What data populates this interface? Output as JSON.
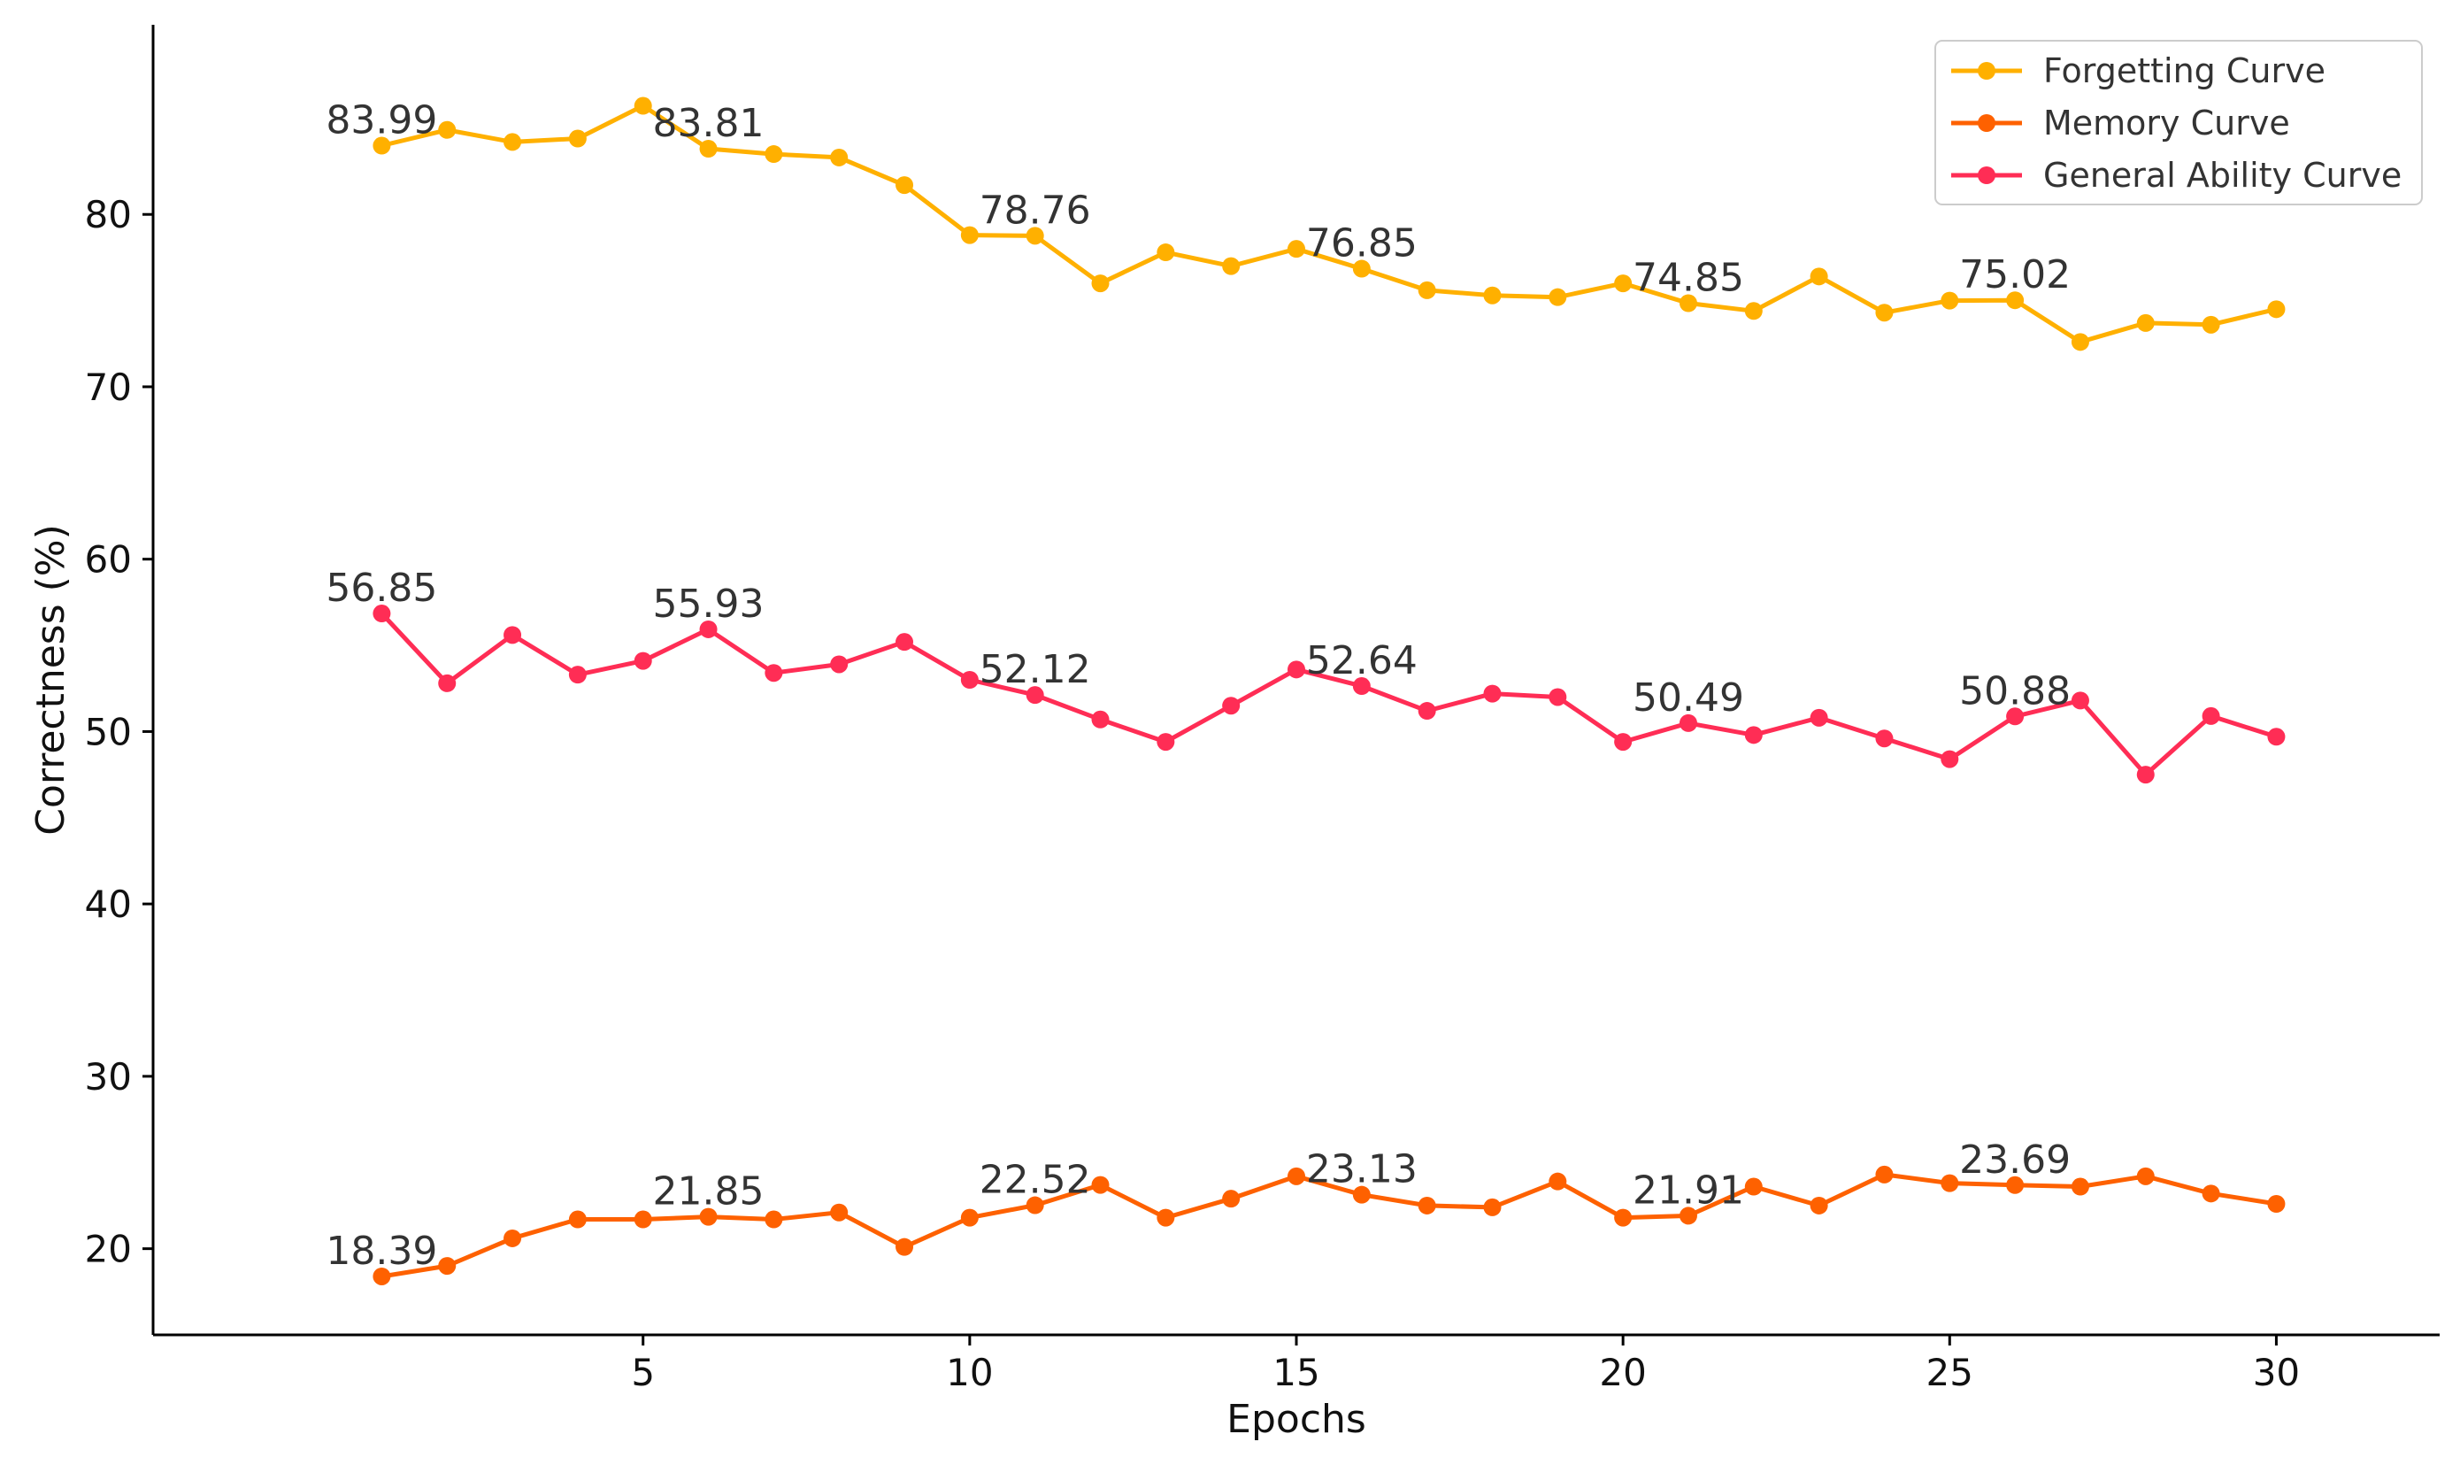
{
  "chart_data": {
    "type": "line",
    "title": "",
    "xlabel": "Epochs",
    "ylabel": "Correctness (%)",
    "xlim": [
      -2.5,
      32.5
    ],
    "ylim": [
      15,
      91
    ],
    "xticks": [
      5,
      10,
      15,
      20,
      25,
      30
    ],
    "yticks": [
      20,
      30,
      40,
      50,
      60,
      70,
      80
    ],
    "grid": false,
    "legend_position": "top-right",
    "x": [
      1,
      2,
      3,
      4,
      5,
      6,
      7,
      8,
      9,
      10,
      11,
      12,
      13,
      14,
      15,
      16,
      17,
      18,
      19,
      20,
      21,
      22,
      23,
      24,
      25,
      26,
      27,
      28,
      29,
      30
    ],
    "series": [
      {
        "name": "Forgetting Curve",
        "color": "#FFB000",
        "values": [
          83.99,
          84.9,
          84.2,
          84.4,
          86.3,
          83.81,
          83.5,
          83.3,
          81.7,
          78.8,
          78.76,
          76.0,
          77.8,
          77.0,
          78.0,
          76.85,
          75.6,
          75.3,
          75.2,
          76.0,
          74.85,
          74.4,
          76.4,
          74.3,
          75.0,
          75.02,
          72.6,
          73.7,
          73.6,
          74.5
        ],
        "annotations": [
          {
            "x": 1,
            "text": "83.99"
          },
          {
            "x": 6,
            "text": "83.81"
          },
          {
            "x": 11,
            "text": "78.76"
          },
          {
            "x": 16,
            "text": "76.85"
          },
          {
            "x": 21,
            "text": "74.85"
          },
          {
            "x": 26,
            "text": "75.02"
          }
        ]
      },
      {
        "name": "Memory Curve",
        "color": "#FE6100",
        "values": [
          18.39,
          19.0,
          20.6,
          21.7,
          21.7,
          21.85,
          21.7,
          22.1,
          20.1,
          21.8,
          22.52,
          23.7,
          21.8,
          22.9,
          24.2,
          23.13,
          22.5,
          22.4,
          23.9,
          21.8,
          21.91,
          23.6,
          22.5,
          24.3,
          23.8,
          23.69,
          23.6,
          24.2,
          23.2,
          22.6
        ],
        "annotations": [
          {
            "x": 1,
            "text": "18.39"
          },
          {
            "x": 6,
            "text": "21.85"
          },
          {
            "x": 11,
            "text": "22.52"
          },
          {
            "x": 16,
            "text": "23.13"
          },
          {
            "x": 21,
            "text": "21.91"
          },
          {
            "x": 26,
            "text": "23.69"
          }
        ]
      },
      {
        "name": "General Ability Curve",
        "color": "#FF2D55",
        "values": [
          56.85,
          52.8,
          55.6,
          53.3,
          54.1,
          55.93,
          53.4,
          53.9,
          55.2,
          53.0,
          52.12,
          50.7,
          49.4,
          51.5,
          53.6,
          52.64,
          51.2,
          52.2,
          52.0,
          49.4,
          50.49,
          49.8,
          50.8,
          49.6,
          48.4,
          50.88,
          51.8,
          47.5,
          50.9,
          49.7
        ],
        "annotations": [
          {
            "x": 1,
            "text": "56.85"
          },
          {
            "x": 6,
            "text": "55.93"
          },
          {
            "x": 11,
            "text": "52.12"
          },
          {
            "x": 16,
            "text": "52.64"
          },
          {
            "x": 21,
            "text": "50.49"
          },
          {
            "x": 26,
            "text": "50.88"
          }
        ]
      }
    ]
  }
}
